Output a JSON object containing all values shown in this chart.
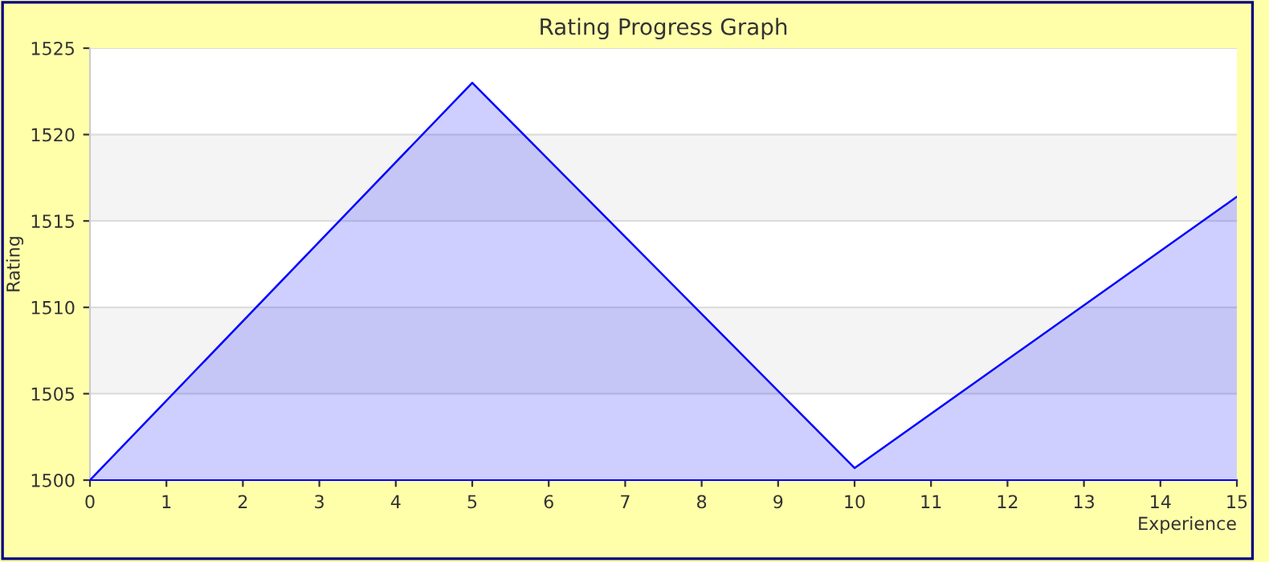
{
  "chart_data": {
    "type": "area",
    "title": "Rating Progress Graph",
    "xlabel": "Experience",
    "ylabel": "Rating",
    "x": [
      0,
      5,
      10,
      15
    ],
    "series": [
      {
        "color": "#0000ff",
        "values": [
          1500,
          1523,
          1500.7,
          1516.4
        ]
      }
    ],
    "xlim": [
      0,
      15
    ],
    "xticks": [
      0,
      1,
      2,
      3,
      4,
      5,
      6,
      7,
      8,
      9,
      10,
      11,
      12,
      13,
      14,
      15
    ],
    "ylim": [
      1500,
      1525
    ],
    "yticks": [
      1500,
      1505,
      1510,
      1515,
      1520,
      1525
    ],
    "grid": "y",
    "legend": false,
    "marker": "none",
    "line_style": "solid"
  }
}
